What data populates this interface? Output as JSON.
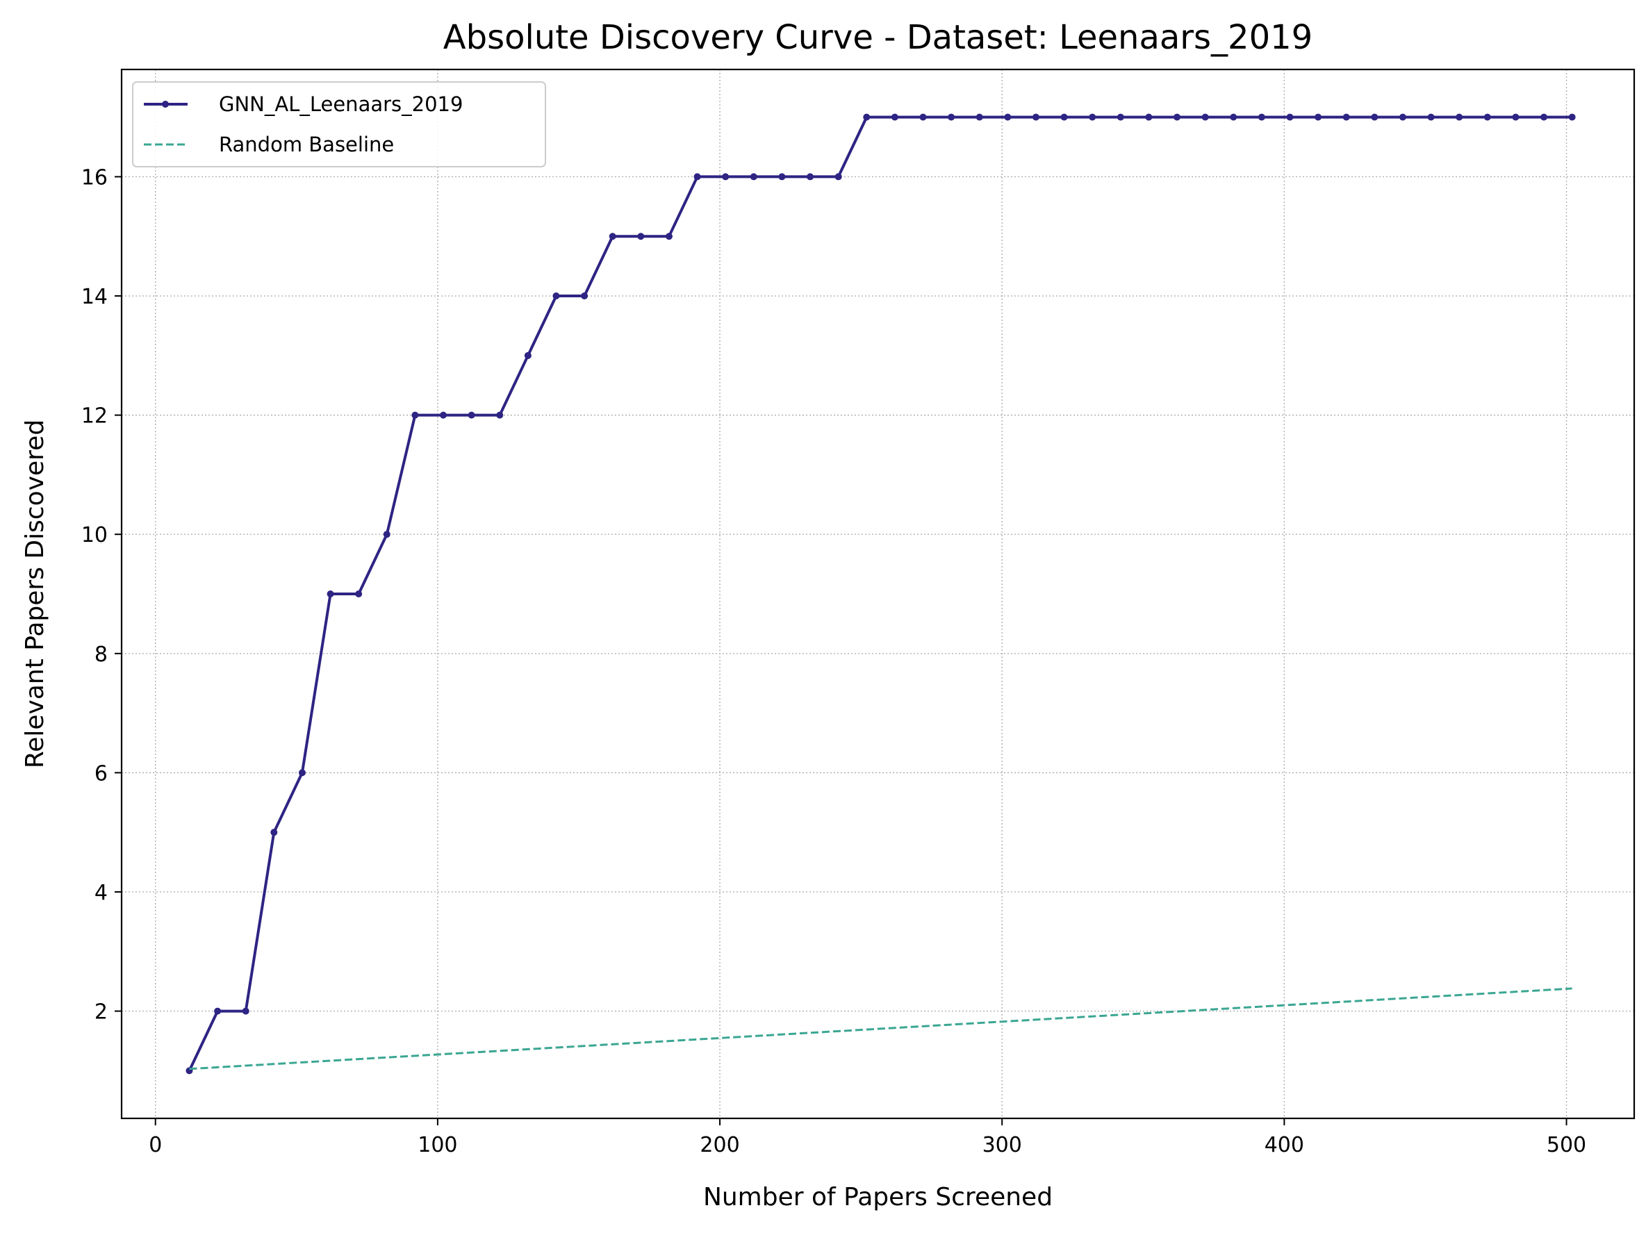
{
  "chart_data": {
    "type": "line",
    "title": "Absolute Discovery Curve - Dataset: Leenaars_2019",
    "xlabel": "Number of Papers Screened",
    "ylabel": "Relevant Papers Discovered",
    "xlim": [
      -12,
      524
    ],
    "ylim": [
      0.2,
      17.8
    ],
    "xticks": [
      0,
      100,
      200,
      300,
      400,
      500
    ],
    "yticks": [
      2,
      4,
      6,
      8,
      10,
      12,
      14,
      16
    ],
    "grid": true,
    "legend_position": "top-left",
    "series": [
      {
        "name": "GNN_AL_Leenaars_2019",
        "color": "#2e2483",
        "style": "solid",
        "markers": true,
        "x": [
          12,
          22,
          32,
          42,
          52,
          62,
          72,
          82,
          92,
          102,
          112,
          122,
          132,
          142,
          152,
          162,
          172,
          182,
          192,
          202,
          212,
          222,
          232,
          242,
          252,
          262,
          272,
          282,
          292,
          302,
          312,
          322,
          332,
          342,
          352,
          362,
          372,
          382,
          392,
          402,
          412,
          422,
          432,
          442,
          452,
          462,
          472,
          482,
          492,
          502
        ],
        "y": [
          1,
          2,
          2,
          5,
          6,
          9,
          9,
          10,
          12,
          12,
          12,
          12,
          13,
          14,
          14,
          15,
          15,
          15,
          16,
          16,
          16,
          16,
          16,
          16,
          17,
          17,
          17,
          17,
          17,
          17,
          17,
          17,
          17,
          17,
          17,
          17,
          17,
          17,
          17,
          17,
          17,
          17,
          17,
          17,
          17,
          17,
          17,
          17,
          17,
          17
        ]
      },
      {
        "name": "Random Baseline",
        "color": "#3aa692",
        "style": "dashed",
        "markers": false,
        "x": [
          12,
          502
        ],
        "y": [
          1.03,
          2.38
        ]
      }
    ]
  }
}
